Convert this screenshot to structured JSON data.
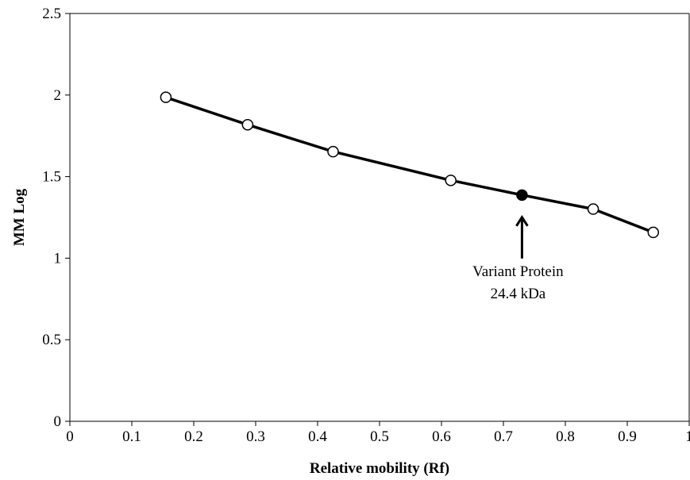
{
  "chart_data": {
    "type": "line",
    "title": "",
    "xlabel": "Relative mobility (Rf)",
    "ylabel": "MM Log",
    "xlim": [
      0,
      1
    ],
    "ylim": [
      0,
      2.5
    ],
    "xticks": [
      0,
      0.1,
      0.2,
      0.3,
      0.4,
      0.5,
      0.6,
      0.7,
      0.8,
      0.9,
      1
    ],
    "yticks": [
      0,
      0.5,
      1,
      1.5,
      2,
      2.5
    ],
    "x_tick_labels": [
      "0",
      "0.1",
      "0.2",
      "0.3",
      "0.4",
      "0.5",
      "0.6",
      "0.7",
      "0.8",
      "0.9",
      "1"
    ],
    "y_tick_labels": [
      "0",
      "0.5",
      "1",
      "1.5",
      "2",
      "2.5"
    ],
    "grid": false,
    "legend": "none",
    "series": [
      {
        "x": [
          0.155,
          0.287,
          0.425,
          0.615,
          0.73,
          0.845,
          0.942
        ],
        "y": [
          1.986,
          1.818,
          1.653,
          1.477,
          1.387,
          1.301,
          1.158
        ],
        "marker_fill": [
          "open",
          "open",
          "open",
          "open",
          "filled",
          "open",
          "open"
        ]
      }
    ],
    "annotation": {
      "x": 0.73,
      "y": 1.387,
      "line1": "Variant Protein",
      "line2": "24.4 kDa"
    },
    "colors": {
      "line": "#000000",
      "open_marker_fill": "#ffffff",
      "filled_marker_fill": "#000000"
    }
  }
}
